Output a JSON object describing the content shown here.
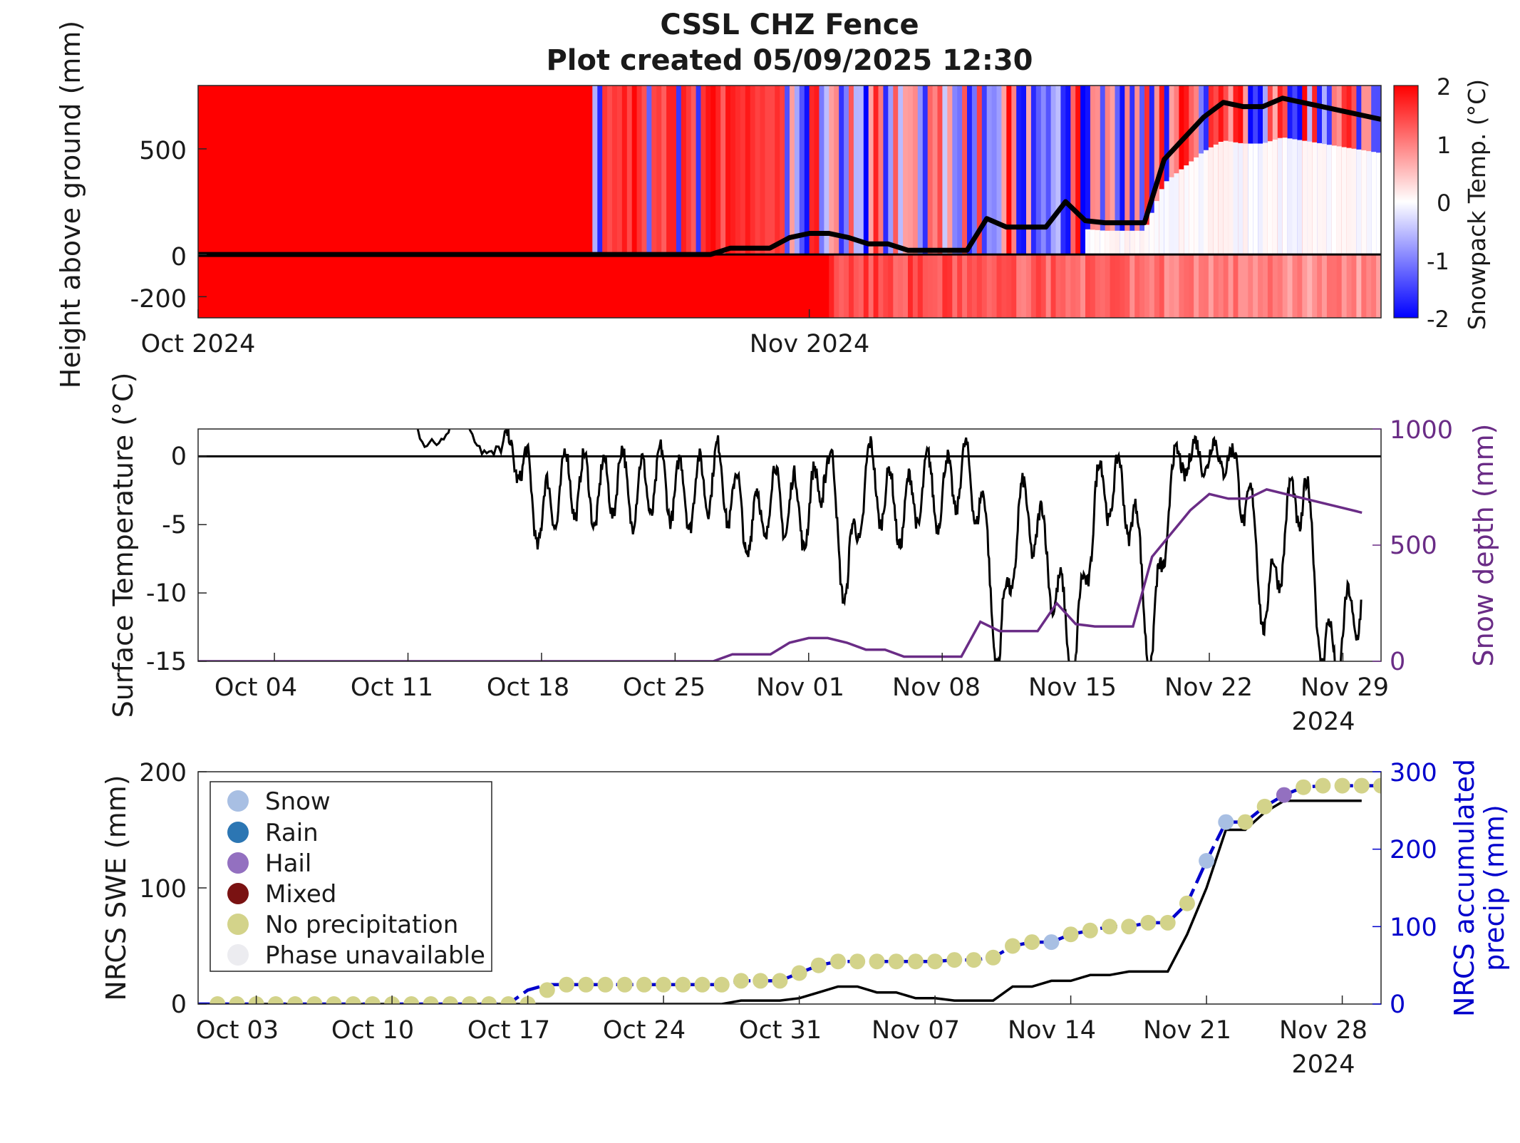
{
  "title": "CSSL CHZ Fence",
  "subtitle": "Plot created 05/09/2025 12:30",
  "colors": {
    "warm": "#ff0000",
    "cold": "#0000ff",
    "depth": "#6a2c86",
    "precip_axis": "#0000cc",
    "line": "#000000"
  },
  "panel1": {
    "ylabel": "Height above ground (mm)",
    "yticks": [
      "500",
      "0",
      "-200"
    ],
    "xticks": [
      "Oct 2024",
      "Nov 2024"
    ],
    "colorbar_label": "Snowpack Temp. (°C)",
    "colorbar_ticks": [
      "2",
      "1",
      "0",
      "-1",
      "-2"
    ]
  },
  "panel2": {
    "ylabel": "Surface Temperature (°C)",
    "yticks": [
      "0",
      "-5",
      "-10",
      "-15"
    ],
    "y2label": "Snow depth (mm)",
    "y2ticks": [
      "1000",
      "500",
      "0"
    ],
    "xticks": [
      "Oct 04",
      "Oct 11",
      "Oct 18",
      "Oct 25",
      "Nov 01",
      "Nov 08",
      "Nov 15",
      "Nov 22",
      "Nov 29"
    ],
    "xyear": "2024"
  },
  "panel3": {
    "ylabel": "NRCS SWE (mm)",
    "yticks": [
      "200",
      "100",
      "0"
    ],
    "y2label_line1": "NRCS accumulated",
    "y2label_line2": "precip (mm)",
    "y2ticks": [
      "300",
      "200",
      "100",
      "0"
    ],
    "xticks": [
      "Oct 03",
      "Oct 10",
      "Oct 17",
      "Oct 24",
      "Oct 31",
      "Nov 07",
      "Nov 14",
      "Nov 21",
      "Nov 28"
    ],
    "xyear": "2024",
    "legend": [
      {
        "label": "Snow",
        "color": "#a8bfe3"
      },
      {
        "label": "Rain",
        "color": "#2c76b3"
      },
      {
        "label": "Hail",
        "color": "#9370c0"
      },
      {
        "label": "Mixed",
        "color": "#7a1212"
      },
      {
        "label": "No precipitation",
        "color": "#d3d38a"
      },
      {
        "label": "Phase unavailable",
        "color": "#ececf0"
      }
    ]
  },
  "chart_data": [
    {
      "type": "heatmap",
      "title": "CSSL CHZ Fence",
      "ylabel": "Height above ground (mm)",
      "ylim": [
        -300,
        800
      ],
      "xlim": [
        "2024-10-01",
        "2024-11-30"
      ],
      "colorbar": {
        "label": "Snowpack Temp. (°C)",
        "range": [
          -2,
          2
        ]
      },
      "series": [
        {
          "name": "snow depth",
          "type": "line",
          "x": [
            "2024-10-01",
            "2024-10-27",
            "2024-10-28",
            "2024-10-29",
            "2024-10-30",
            "2024-10-31",
            "2024-11-01",
            "2024-11-02",
            "2024-11-03",
            "2024-11-04",
            "2024-11-05",
            "2024-11-06",
            "2024-11-07",
            "2024-11-08",
            "2024-11-09",
            "2024-11-10",
            "2024-11-11",
            "2024-11-12",
            "2024-11-13",
            "2024-11-14",
            "2024-11-15",
            "2024-11-16",
            "2024-11-17",
            "2024-11-18",
            "2024-11-19",
            "2024-11-20",
            "2024-11-21",
            "2024-11-22",
            "2024-11-23",
            "2024-11-24",
            "2024-11-25",
            "2024-11-26",
            "2024-11-27",
            "2024-11-28",
            "2024-11-29",
            "2024-11-30"
          ],
          "y": [
            0,
            0,
            30,
            30,
            30,
            80,
            100,
            100,
            80,
            50,
            50,
            20,
            20,
            20,
            20,
            170,
            130,
            130,
            130,
            250,
            160,
            150,
            150,
            150,
            450,
            550,
            650,
            720,
            700,
            700,
            740,
            720,
            700,
            680,
            660,
            640
          ]
        }
      ]
    },
    {
      "type": "line",
      "xlabel": "",
      "ylabel": "Surface Temperature (°C)",
      "ylim": [
        -15,
        2
      ],
      "y2label": "Snow depth (mm)",
      "y2lim": [
        0,
        1000
      ],
      "xlim": [
        "2024-09-30",
        "2024-12-01"
      ],
      "series": [
        {
          "name": "snow depth",
          "axis": "right",
          "x": [
            "2024-09-30",
            "2024-10-27",
            "2024-10-28",
            "2024-10-29",
            "2024-10-30",
            "2024-10-31",
            "2024-11-01",
            "2024-11-02",
            "2024-11-03",
            "2024-11-04",
            "2024-11-05",
            "2024-11-06",
            "2024-11-07",
            "2024-11-08",
            "2024-11-09",
            "2024-11-10",
            "2024-11-11",
            "2024-11-12",
            "2024-11-13",
            "2024-11-14",
            "2024-11-15",
            "2024-11-16",
            "2024-11-17",
            "2024-11-18",
            "2024-11-19",
            "2024-11-20",
            "2024-11-21",
            "2024-11-22",
            "2024-11-23",
            "2024-11-24",
            "2024-11-25",
            "2024-11-26",
            "2024-11-27",
            "2024-11-28",
            "2024-11-29",
            "2024-11-30"
          ],
          "y": [
            0,
            0,
            30,
            30,
            30,
            80,
            100,
            100,
            80,
            50,
            50,
            20,
            20,
            20,
            20,
            170,
            130,
            130,
            130,
            250,
            160,
            150,
            150,
            150,
            450,
            550,
            650,
            720,
            700,
            700,
            740,
            720,
            700,
            680,
            660,
            640
          ]
        },
        {
          "name": "surface temperature",
          "axis": "left",
          "x": [
            "2024-10-10",
            "2024-10-13",
            "2024-10-16",
            "2024-10-17",
            "2024-10-18",
            "2024-10-19",
            "2024-10-20",
            "2024-10-21",
            "2024-10-22",
            "2024-10-23",
            "2024-10-24",
            "2024-10-25",
            "2024-10-26",
            "2024-10-27",
            "2024-10-28",
            "2024-10-29",
            "2024-10-30",
            "2024-10-31",
            "2024-11-01",
            "2024-11-02",
            "2024-11-03",
            "2024-11-04",
            "2024-11-05",
            "2024-11-06",
            "2024-11-07",
            "2024-11-08",
            "2024-11-09",
            "2024-11-10",
            "2024-11-11",
            "2024-11-12",
            "2024-11-13",
            "2024-11-14",
            "2024-11-15",
            "2024-11-16",
            "2024-11-17",
            "2024-11-18",
            "2024-11-19",
            "2024-11-20",
            "2024-11-21",
            "2024-11-22",
            "2024-11-23",
            "2024-11-24",
            "2024-11-25",
            "2024-11-26",
            "2024-11-27",
            "2024-11-28",
            "2024-11-29",
            "2024-11-30"
          ],
          "y": [
            2,
            2,
            1,
            -1,
            -5,
            -2,
            -2,
            -3,
            -1.5,
            -3,
            -1.5,
            -2.5,
            -3,
            -1,
            -3,
            -5.5,
            -3,
            -3.5,
            -4.5,
            0,
            -10,
            -1,
            -3,
            -4.5,
            -2,
            -3,
            -1,
            -3,
            -15,
            -4,
            -5,
            -10,
            -15,
            -3,
            -2,
            -4,
            -15,
            -1,
            0,
            0,
            0,
            -3,
            -12,
            -5,
            -2,
            -15,
            -13,
            -10
          ]
        }
      ]
    },
    {
      "type": "line",
      "ylabel": "NRCS SWE (mm)",
      "ylim": [
        0,
        200
      ],
      "y2label": "NRCS accumulated precip (mm)",
      "y2lim": [
        0,
        300
      ],
      "xlim": [
        "2024-09-30",
        "2024-11-30"
      ],
      "series": [
        {
          "name": "NRCS SWE",
          "axis": "left",
          "x": [
            "2024-09-30",
            "2024-10-27",
            "2024-10-28",
            "2024-10-29",
            "2024-10-30",
            "2024-10-31",
            "2024-11-01",
            "2024-11-02",
            "2024-11-03",
            "2024-11-04",
            "2024-11-05",
            "2024-11-06",
            "2024-11-07",
            "2024-11-08",
            "2024-11-09",
            "2024-11-10",
            "2024-11-11",
            "2024-11-12",
            "2024-11-13",
            "2024-11-14",
            "2024-11-15",
            "2024-11-16",
            "2024-11-17",
            "2024-11-18",
            "2024-11-19",
            "2024-11-20",
            "2024-11-21",
            "2024-11-22",
            "2024-11-23",
            "2024-11-24",
            "2024-11-25",
            "2024-11-26",
            "2024-11-27",
            "2024-11-28",
            "2024-11-29"
          ],
          "y": [
            0,
            0,
            3,
            3,
            3,
            5,
            10,
            15,
            15,
            10,
            10,
            5,
            5,
            3,
            3,
            3,
            15,
            15,
            20,
            20,
            25,
            25,
            28,
            28,
            28,
            60,
            100,
            150,
            150,
            165,
            175,
            175,
            175,
            175,
            175
          ]
        },
        {
          "name": "NRCS accumulated precip",
          "axis": "right",
          "x": [
            "2024-09-30",
            "2024-10-14",
            "2024-10-15",
            "2024-10-16",
            "2024-10-17",
            "2024-10-18",
            "2024-10-19",
            "2024-10-20",
            "2024-10-21",
            "2024-10-22",
            "2024-10-23",
            "2024-10-24",
            "2024-10-25",
            "2024-10-26",
            "2024-10-27",
            "2024-10-28",
            "2024-10-29",
            "2024-10-30",
            "2024-10-31",
            "2024-11-01",
            "2024-11-02",
            "2024-11-03",
            "2024-11-04",
            "2024-11-05",
            "2024-11-06",
            "2024-11-07",
            "2024-11-08",
            "2024-11-09",
            "2024-11-10",
            "2024-11-11",
            "2024-11-12",
            "2024-11-13",
            "2024-11-14",
            "2024-11-15",
            "2024-11-16",
            "2024-11-17",
            "2024-11-18",
            "2024-11-19",
            "2024-11-20",
            "2024-11-21",
            "2024-11-22",
            "2024-11-23",
            "2024-11-24",
            "2024-11-25",
            "2024-11-26",
            "2024-11-27",
            "2024-11-28",
            "2024-11-29",
            "2024-11-30"
          ],
          "y": [
            0,
            0,
            0,
            0,
            18,
            25,
            25,
            25,
            25,
            25,
            25,
            25,
            25,
            25,
            25,
            30,
            30,
            30,
            40,
            50,
            55,
            55,
            55,
            55,
            55,
            55,
            57,
            57,
            60,
            75,
            80,
            80,
            90,
            95,
            100,
            100,
            105,
            105,
            130,
            185,
            235,
            235,
            255,
            270,
            280,
            282,
            282,
            282,
            282
          ]
        },
        {
          "name": "daily phase markers",
          "type": "scatter",
          "x": [
            "2024-10-01",
            "2024-10-02",
            "2024-10-03",
            "2024-10-04",
            "2024-10-05",
            "2024-10-06",
            "2024-10-07",
            "2024-10-08",
            "2024-10-09",
            "2024-10-10",
            "2024-10-11",
            "2024-10-12",
            "2024-10-13",
            "2024-10-14",
            "2024-10-15",
            "2024-10-16",
            "2024-10-17",
            "2024-10-18",
            "2024-10-19",
            "2024-10-20",
            "2024-10-21",
            "2024-10-22",
            "2024-10-23",
            "2024-10-24",
            "2024-10-25",
            "2024-10-26",
            "2024-10-27",
            "2024-10-28",
            "2024-10-29",
            "2024-10-30",
            "2024-10-31",
            "2024-11-01",
            "2024-11-02",
            "2024-11-03",
            "2024-11-04",
            "2024-11-05",
            "2024-11-06",
            "2024-11-07",
            "2024-11-08",
            "2024-11-09",
            "2024-11-10",
            "2024-11-11",
            "2024-11-12",
            "2024-11-13",
            "2024-11-14",
            "2024-11-15",
            "2024-11-16",
            "2024-11-17",
            "2024-11-18",
            "2024-11-19",
            "2024-11-20",
            "2024-11-21",
            "2024-11-22",
            "2024-11-23",
            "2024-11-24",
            "2024-11-25",
            "2024-11-26",
            "2024-11-27",
            "2024-11-28",
            "2024-11-29",
            "2024-11-30"
          ],
          "y": [
            0,
            0,
            0,
            0,
            0,
            0,
            0,
            0,
            0,
            0,
            0,
            0,
            0,
            0,
            0,
            0,
            0,
            18,
            25,
            25,
            25,
            25,
            25,
            25,
            25,
            25,
            25,
            30,
            30,
            30,
            40,
            50,
            55,
            55,
            55,
            55,
            55,
            55,
            57,
            57,
            60,
            75,
            80,
            80,
            90,
            95,
            100,
            100,
            105,
            105,
            130,
            185,
            235,
            235,
            255,
            270,
            280,
            282,
            282,
            282,
            282
          ],
          "phase": [
            "No precipitation",
            "No precipitation",
            "No precipitation",
            "No precipitation",
            "No precipitation",
            "No precipitation",
            "No precipitation",
            "No precipitation",
            "No precipitation",
            "No precipitation",
            "No precipitation",
            "No precipitation",
            "No precipitation",
            "No precipitation",
            "No precipitation",
            "No precipitation",
            "No precipitation",
            "No precipitation",
            "No precipitation",
            "No precipitation",
            "No precipitation",
            "No precipitation",
            "No precipitation",
            "No precipitation",
            "No precipitation",
            "No precipitation",
            "No precipitation",
            "No precipitation",
            "No precipitation",
            "No precipitation",
            "No precipitation",
            "No precipitation",
            "No precipitation",
            "No precipitation",
            "No precipitation",
            "No precipitation",
            "No precipitation",
            "No precipitation",
            "No precipitation",
            "No precipitation",
            "No precipitation",
            "No precipitation",
            "No precipitation",
            "Snow",
            "No precipitation",
            "No precipitation",
            "No precipitation",
            "No precipitation",
            "No precipitation",
            "No precipitation",
            "No precipitation",
            "Snow",
            "Snow",
            "No precipitation",
            "No precipitation",
            "Hail",
            "No precipitation",
            "No precipitation",
            "No precipitation",
            "No precipitation",
            "No precipitation"
          ]
        }
      ]
    }
  ]
}
